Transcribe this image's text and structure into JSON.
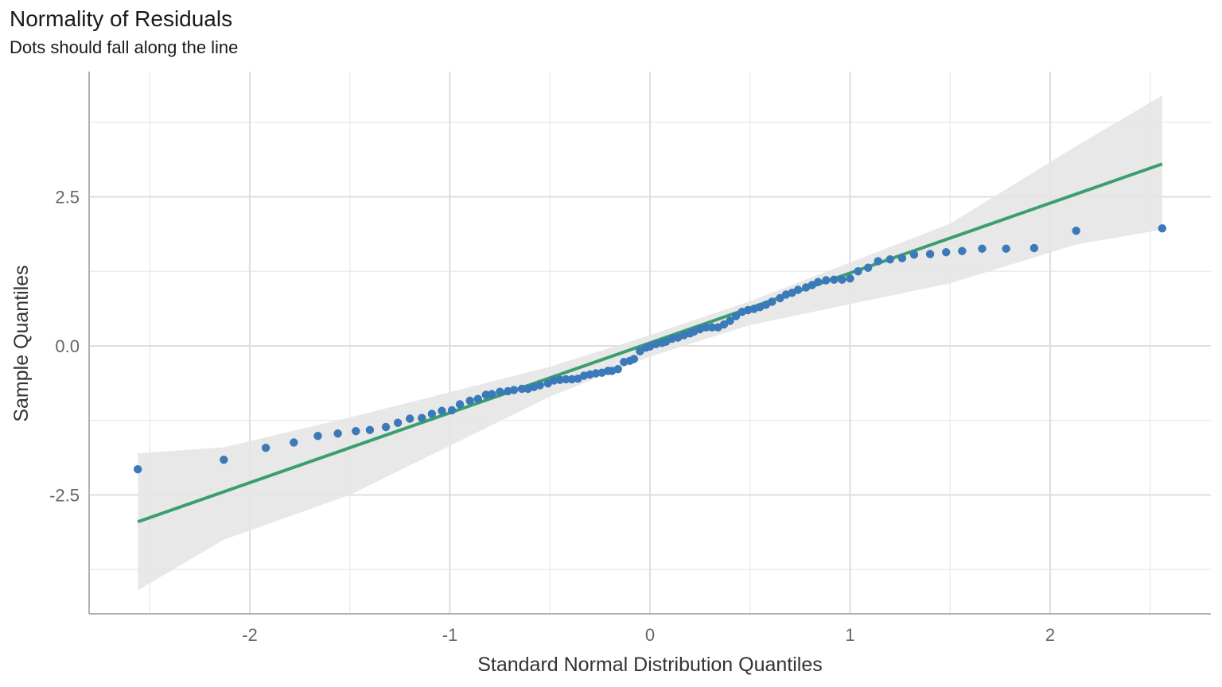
{
  "chart_data": {
    "type": "scatter",
    "title": "Normality of Residuals",
    "subtitle": "Dots should fall along the line",
    "xlabel": "Standard Normal Distribution Quantiles",
    "ylabel": "Sample Quantiles",
    "xlim": [
      -2.58,
      2.58
    ],
    "ylim": [
      -4.5,
      4.5
    ],
    "x_ticks": [
      -2,
      -1,
      0,
      1,
      2
    ],
    "x_tick_labels": [
      "-2",
      "-1",
      "0",
      "1",
      "2"
    ],
    "y_ticks": [
      -2.5,
      0.0,
      2.5
    ],
    "y_tick_labels": [
      "-2.5",
      "0.0",
      "2.5"
    ],
    "grid": true,
    "colors": {
      "points": "#3a7ab8",
      "line": "#3a9e6e",
      "band": "#e6e6e6"
    },
    "reference_line": {
      "x": [
        -2.56,
        2.56
      ],
      "y": [
        -2.95,
        3.05
      ]
    },
    "confidence_band": {
      "x": [
        -2.56,
        -2.13,
        -1.5,
        -0.5,
        0.0,
        0.5,
        1.5,
        2.13,
        2.56
      ],
      "upper": [
        -1.8,
        -1.7,
        -1.2,
        -0.35,
        0.18,
        0.75,
        2.05,
        3.35,
        4.2
      ],
      "lower": [
        -4.1,
        -3.25,
        -2.5,
        -0.85,
        -0.18,
        0.35,
        1.05,
        1.7,
        1.95
      ]
    },
    "series": [
      {
        "x": [
          -2.56,
          -2.13,
          -1.92,
          -1.78,
          -1.66,
          -1.56,
          -1.47,
          -1.4,
          -1.32,
          -1.26,
          -1.2,
          -1.14,
          -1.09,
          -1.04,
          -0.99,
          -0.95,
          -0.9,
          -0.86,
          -0.82,
          -0.79,
          -0.75,
          -0.71,
          -0.68,
          -0.64,
          -0.61,
          -0.58,
          -0.55,
          -0.51,
          -0.48,
          -0.45,
          -0.42,
          -0.39,
          -0.36,
          -0.33,
          -0.3,
          -0.27,
          -0.24,
          -0.21,
          -0.19,
          -0.16,
          -0.13,
          -0.1,
          -0.08,
          -0.05,
          -0.02,
          0.0,
          0.03,
          0.06,
          0.08,
          0.11,
          0.14,
          0.17,
          0.2,
          0.22,
          0.25,
          0.28,
          0.31,
          0.34,
          0.37,
          0.4,
          0.43,
          0.46,
          0.49,
          0.52,
          0.55,
          0.58,
          0.61,
          0.65,
          0.68,
          0.71,
          0.74,
          0.78,
          0.81,
          0.84,
          0.88,
          0.92,
          0.96,
          1.0,
          1.04,
          1.09,
          1.14,
          1.2,
          1.26,
          1.32,
          1.4,
          1.48,
          1.56,
          1.66,
          1.78,
          1.92,
          2.13,
          2.56
        ],
        "y": [
          -2.07,
          -1.91,
          -1.71,
          -1.62,
          -1.51,
          -1.47,
          -1.43,
          -1.41,
          -1.36,
          -1.29,
          -1.22,
          -1.21,
          -1.14,
          -1.09,
          -1.08,
          -0.98,
          -0.92,
          -0.89,
          -0.82,
          -0.81,
          -0.77,
          -0.76,
          -0.74,
          -0.72,
          -0.72,
          -0.69,
          -0.66,
          -0.63,
          -0.58,
          -0.57,
          -0.56,
          -0.56,
          -0.55,
          -0.5,
          -0.48,
          -0.46,
          -0.45,
          -0.42,
          -0.42,
          -0.39,
          -0.27,
          -0.25,
          -0.22,
          -0.09,
          -0.03,
          -0.01,
          0.03,
          0.05,
          0.07,
          0.12,
          0.14,
          0.18,
          0.21,
          0.24,
          0.28,
          0.31,
          0.31,
          0.31,
          0.36,
          0.42,
          0.5,
          0.57,
          0.6,
          0.62,
          0.65,
          0.69,
          0.74,
          0.8,
          0.86,
          0.89,
          0.94,
          0.98,
          1.02,
          1.07,
          1.1,
          1.11,
          1.11,
          1.13,
          1.25,
          1.31,
          1.42,
          1.45,
          1.47,
          1.53,
          1.54,
          1.57,
          1.59,
          1.63,
          1.63,
          1.64,
          1.93,
          1.97
        ]
      }
    ]
  }
}
